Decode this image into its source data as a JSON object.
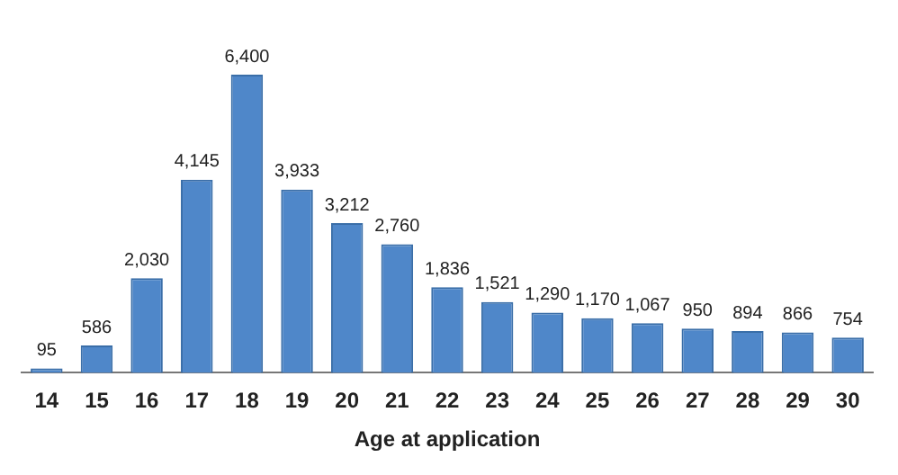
{
  "chart_data": {
    "type": "bar",
    "xlabel": "Age at application",
    "categories": [
      "14",
      "15",
      "16",
      "17",
      "18",
      "19",
      "20",
      "21",
      "22",
      "23",
      "24",
      "25",
      "26",
      "27",
      "28",
      "29",
      "30"
    ],
    "values": [
      95,
      586,
      2030,
      4145,
      6400,
      3933,
      3212,
      2760,
      1836,
      1521,
      1290,
      1170,
      1067,
      950,
      894,
      866,
      754
    ],
    "value_labels": [
      "95",
      "586",
      "2,030",
      "4,145",
      "6,400",
      "3,933",
      "3,212",
      "2,760",
      "1,836",
      "1,521",
      "1,290",
      "1,170",
      "1,067",
      "950",
      "894",
      "866",
      "754"
    ],
    "color": "#4f87c9",
    "grid": false,
    "legend": false
  }
}
